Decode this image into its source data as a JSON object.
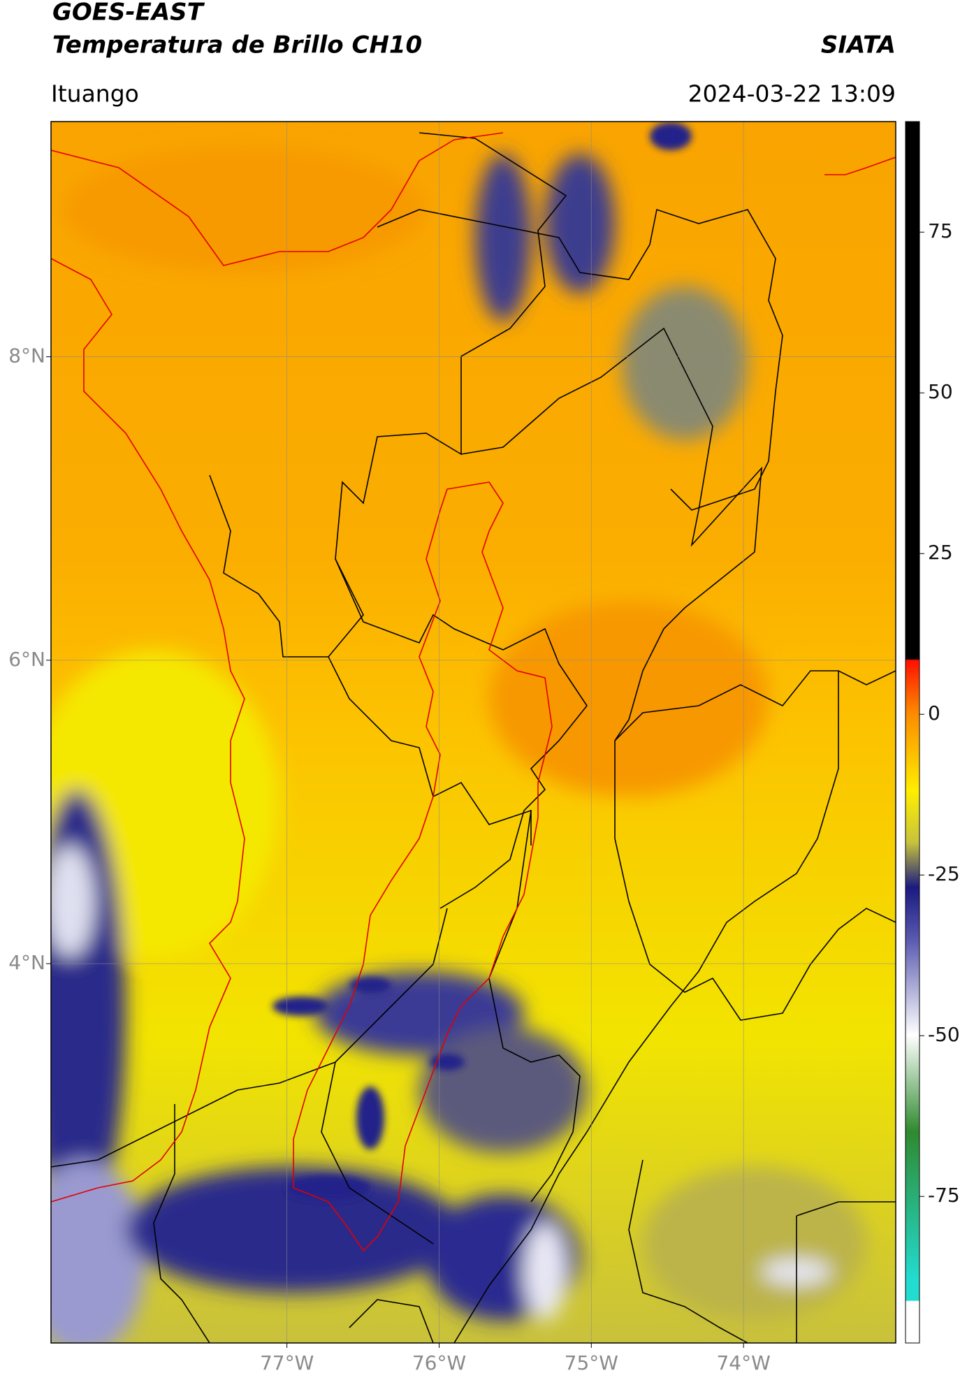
{
  "header": {
    "title": "GOES-EAST",
    "subtitle": "Temperatura de Brillo CH10",
    "agency": "SIATA",
    "location": "Ituango",
    "datetime": "2024-03-22 13:09"
  },
  "map": {
    "xlim": [
      -78.55,
      -73.0
    ],
    "ylim": [
      1.5,
      9.55
    ],
    "xticks": [
      {
        "value": -77,
        "label": "77°W"
      },
      {
        "value": -76,
        "label": "76°W"
      },
      {
        "value": -75,
        "label": "75°W"
      },
      {
        "value": -74,
        "label": "74°W"
      }
    ],
    "yticks": [
      {
        "value": 8,
        "label": "8°N"
      },
      {
        "value": 6,
        "label": "6°N"
      },
      {
        "value": 4,
        "label": "4°N"
      }
    ]
  },
  "colorbar": {
    "lim": [
      -97.8,
      92.2
    ],
    "ticks": [
      75,
      50,
      25,
      0,
      -25,
      -50,
      -75
    ]
  }
}
